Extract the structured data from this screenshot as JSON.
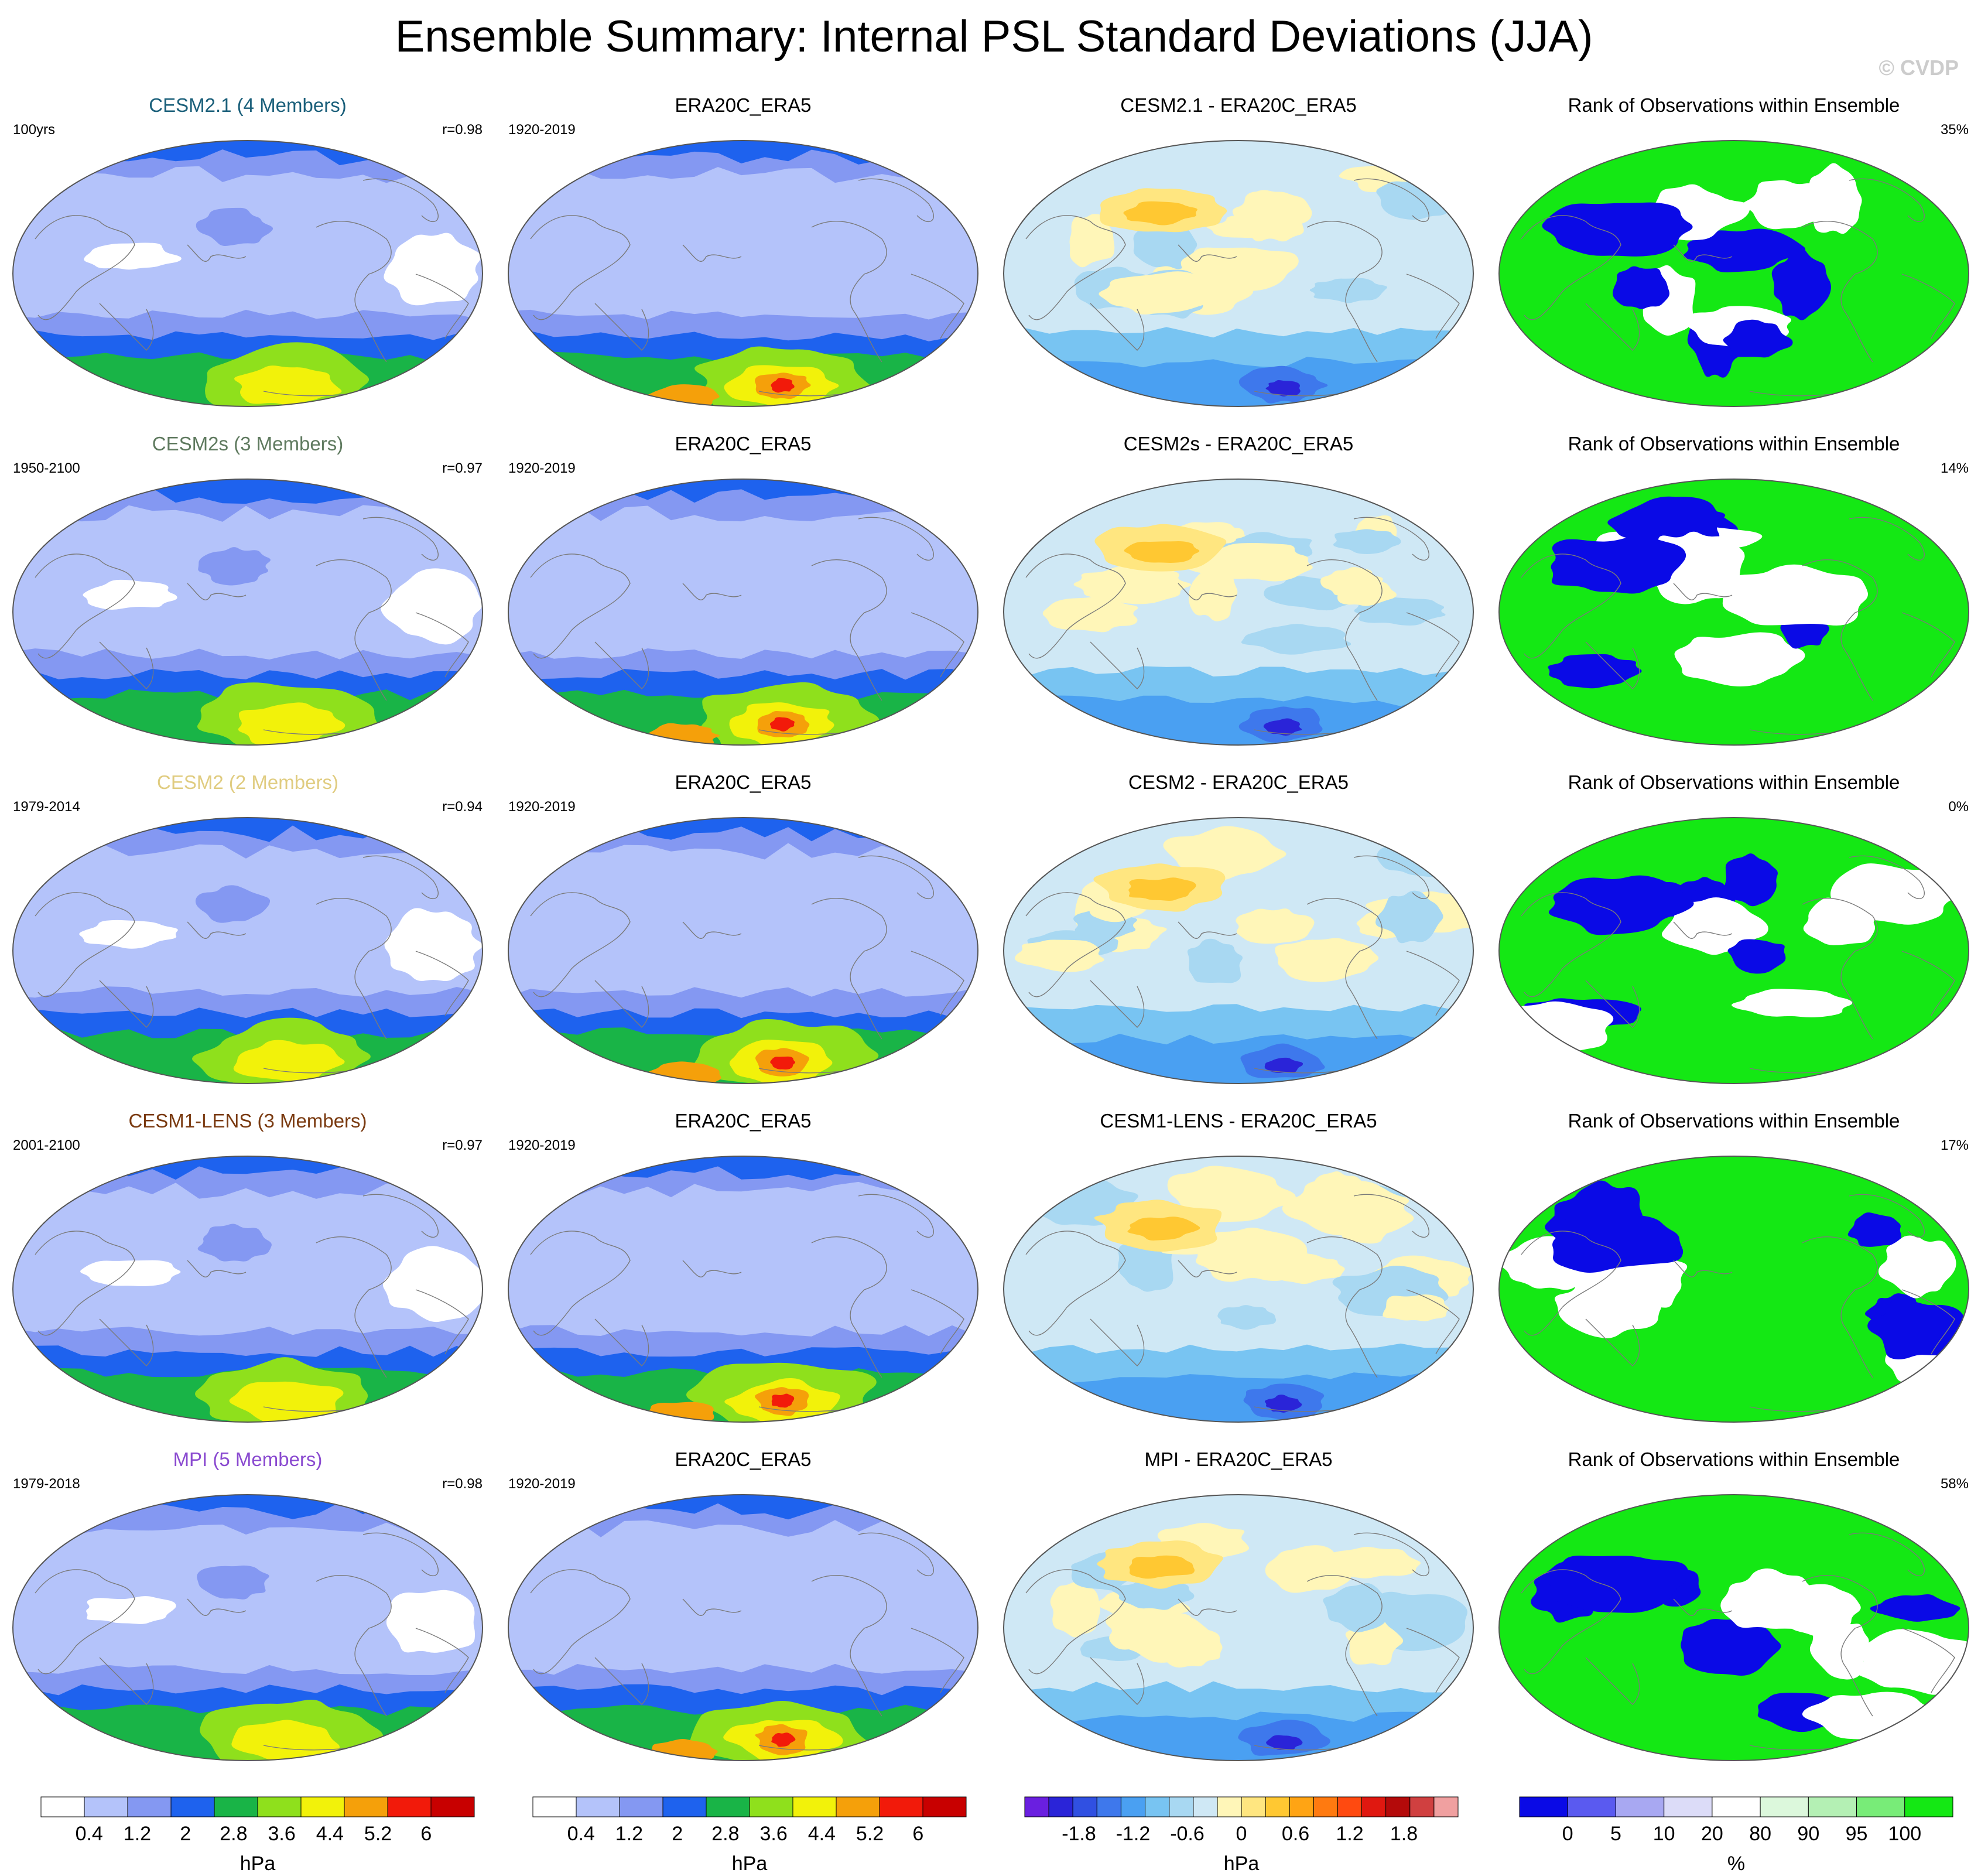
{
  "title": "Ensemble Summary: Internal PSL Standard Deviations (JJA)",
  "copyright": "© CVDP",
  "palettes": {
    "std": [
      "#ffffff",
      "#b4c3fa",
      "#8498f2",
      "#1e62ee",
      "#19b447",
      "#8fe01c",
      "#f2f20a",
      "#f5a00a",
      "#f21a0a",
      "#c80000"
    ],
    "diff": [
      "#6a1fe0",
      "#2a24d8",
      "#3050e2",
      "#3e78ec",
      "#4aa0f2",
      "#78c4f2",
      "#a8d8f2",
      "#cfe8f5",
      "#fff6b8",
      "#ffe680",
      "#ffc832",
      "#ffa414",
      "#ff7a10",
      "#ff4a10",
      "#e01810",
      "#b40a0a",
      "#d04040",
      "#f0a0a0"
    ],
    "rank": [
      "#0a0ae6",
      "#5a5af0",
      "#a8a8f2",
      "#dcdcf8",
      "#ffffff",
      "#dcf8dc",
      "#b4f0b4",
      "#78ec78",
      "#14e814"
    ]
  },
  "colorbars": [
    {
      "key": "std",
      "ticks": [
        "0.4",
        "1.2",
        "2",
        "2.8",
        "3.6",
        "4.4",
        "5.2",
        "6"
      ],
      "unit": "hPa"
    },
    {
      "key": "std",
      "ticks": [
        "0.4",
        "1.2",
        "2",
        "2.8",
        "3.6",
        "4.4",
        "5.2",
        "6"
      ],
      "unit": "hPa"
    },
    {
      "key": "diff",
      "ticks": [
        "-1.8",
        "-1.2",
        "-0.6",
        "0",
        "0.6",
        "1.2",
        "1.8"
      ],
      "unit": "hPa"
    },
    {
      "key": "rank",
      "ticks": [
        "0",
        "5",
        "10",
        "20",
        "80",
        "90",
        "95",
        "100"
      ],
      "unit": "%"
    }
  ],
  "rows": [
    {
      "model": {
        "title": "CESM2.1 (4 Members)",
        "title_color": "#1a5f7a",
        "left": "100yrs",
        "right": "r=0.98"
      },
      "obs": {
        "title": "ERA20C_ERA5",
        "left": "1920-2019"
      },
      "diff": {
        "title": "CESM2.1 - ERA20C_ERA5"
      },
      "rank": {
        "title": "Rank of Observations within Ensemble",
        "right": "35%"
      }
    },
    {
      "model": {
        "title": "CESM2s (3 Members)",
        "title_color": "#5f7a5f",
        "left": "1950-2100",
        "right": "r=0.97"
      },
      "obs": {
        "title": "ERA20C_ERA5",
        "left": "1920-2019"
      },
      "diff": {
        "title": "CESM2s - ERA20C_ERA5"
      },
      "rank": {
        "title": "Rank of Observations within Ensemble",
        "right": "14%"
      }
    },
    {
      "model": {
        "title": "CESM2 (2 Members)",
        "title_color": "#e0cc80",
        "left": "1979-2014",
        "right": "r=0.94"
      },
      "obs": {
        "title": "ERA20C_ERA5",
        "left": "1920-2019"
      },
      "diff": {
        "title": "CESM2 - ERA20C_ERA5"
      },
      "rank": {
        "title": "Rank of Observations within Ensemble",
        "right": "0%"
      }
    },
    {
      "model": {
        "title": "CESM1-LENS (3 Members)",
        "title_color": "#7a3a10",
        "left": "2001-2100",
        "right": "r=0.97"
      },
      "obs": {
        "title": "ERA20C_ERA5",
        "left": "1920-2019"
      },
      "diff": {
        "title": "CESM1-LENS - ERA20C_ERA5"
      },
      "rank": {
        "title": "Rank of Observations within Ensemble",
        "right": "17%"
      }
    },
    {
      "model": {
        "title": "MPI (5 Members)",
        "title_color": "#8a4ad0",
        "left": "1979-2018",
        "right": "r=0.98"
      },
      "obs": {
        "title": "ERA20C_ERA5",
        "left": "1920-2019"
      },
      "diff": {
        "title": "MPI - ERA20C_ERA5"
      },
      "rank": {
        "title": "Rank of Observations within Ensemble",
        "right": "58%"
      }
    }
  ]
}
